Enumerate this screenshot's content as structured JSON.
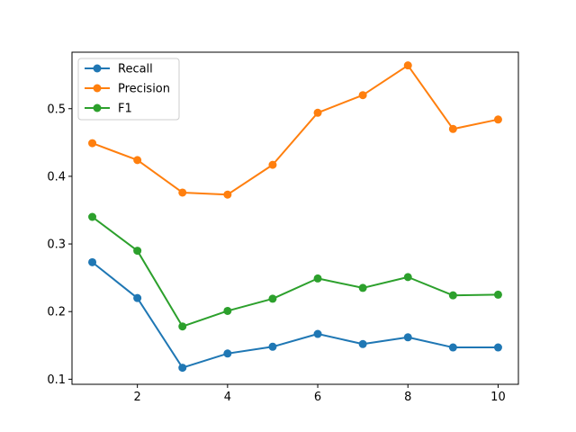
{
  "chart_data": {
    "type": "line",
    "title": "",
    "xlabel": "",
    "ylabel": "",
    "x": [
      1,
      2,
      3,
      4,
      5,
      6,
      7,
      8,
      9,
      10
    ],
    "xlim": [
      0.55,
      10.45
    ],
    "ylim": [
      0.0925,
      0.5835
    ],
    "xticks": [
      2,
      4,
      6,
      8,
      10
    ],
    "yticks": [
      0.1,
      0.2,
      0.3,
      0.4,
      0.5
    ],
    "xtick_labels": [
      "2",
      "4",
      "6",
      "8",
      "10"
    ],
    "ytick_labels": [
      "0.1",
      "0.2",
      "0.3",
      "0.4",
      "0.5"
    ],
    "grid": false,
    "legend_position": "top-left",
    "series": [
      {
        "name": "Recall",
        "color": "#1f77b4",
        "values": [
          0.273,
          0.22,
          0.117,
          0.138,
          0.148,
          0.167,
          0.152,
          0.162,
          0.147,
          0.147
        ]
      },
      {
        "name": "Precision",
        "color": "#ff7f0e",
        "values": [
          0.449,
          0.424,
          0.376,
          0.373,
          0.417,
          0.494,
          0.52,
          0.564,
          0.47,
          0.484
        ]
      },
      {
        "name": "F1",
        "color": "#2ca02c",
        "values": [
          0.34,
          0.29,
          0.178,
          0.201,
          0.219,
          0.249,
          0.235,
          0.251,
          0.224,
          0.225
        ]
      }
    ]
  }
}
